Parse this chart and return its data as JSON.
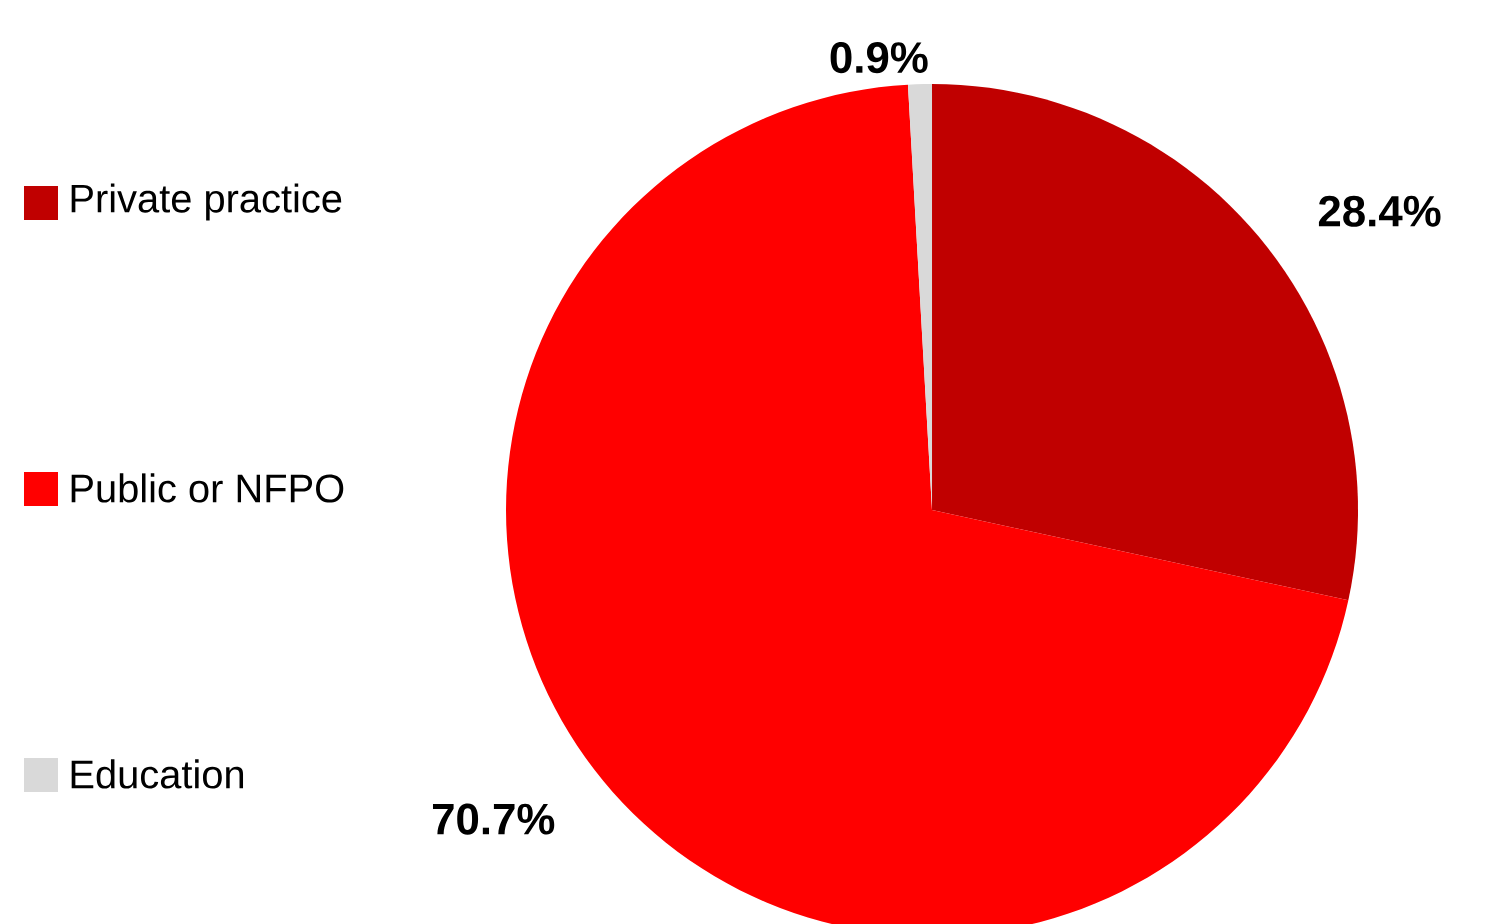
{
  "chart_data": {
    "type": "pie",
    "categories": [
      "Private practice",
      "Public or NFPO",
      "Education"
    ],
    "values": [
      28.4,
      70.7,
      0.9
    ],
    "value_labels": [
      "28.4%",
      "70.7%",
      "0.9%"
    ],
    "colors": [
      "#c00000",
      "#ff0000",
      "#d9d9d9"
    ],
    "legend": "left"
  }
}
